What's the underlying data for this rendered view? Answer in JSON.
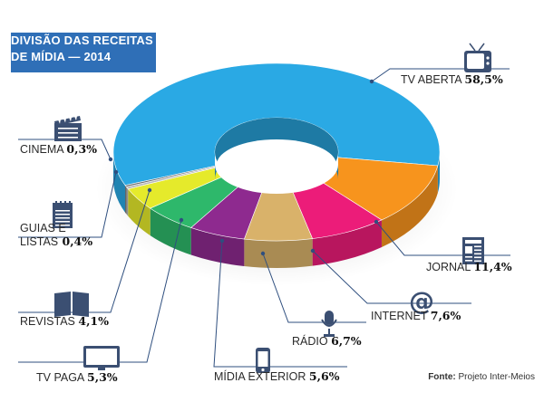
{
  "title_lines": [
    "DIVISÃO DAS RECEITAS",
    "DE MÍDIA — 2014"
  ],
  "source": {
    "prefix": "Fonte:",
    "text": " Projeto Inter-Meios"
  },
  "colors": {
    "title_bg": "#2f6fb7",
    "leader": "#2f4f7f",
    "icon": "#3b4f72"
  },
  "chart_data": {
    "type": "pie",
    "style": "3d-donut",
    "title": "DIVISÃO DAS RECEITAS DE MÍDIA — 2014",
    "unit": "%",
    "slices": [
      {
        "label": "TV ABERTA",
        "value_label": "58,5%",
        "value": 58.5,
        "color": "#2aa9e4",
        "icon": "tv-icon"
      },
      {
        "label": "JORNAL",
        "value_label": "11,4%",
        "value": 11.4,
        "color": "#f7941d",
        "icon": "newspaper-icon"
      },
      {
        "label": "INTERNET",
        "value_label": "7,6%",
        "value": 7.6,
        "color": "#ec1c79",
        "icon": "at-sign-icon"
      },
      {
        "label": "RÁDIO",
        "value_label": "6,7%",
        "value": 6.7,
        "color": "#d9b26a",
        "icon": "microphone-icon"
      },
      {
        "label": "MÍDIA EXTERIOR",
        "value_label": "5,6%",
        "value": 5.6,
        "color": "#8e2a8f",
        "icon": "phone-icon"
      },
      {
        "label": "TV PAGA",
        "value_label": "5,3%",
        "value": 5.3,
        "color": "#2eb86b",
        "icon": "flat-tv-icon"
      },
      {
        "label": "REVISTAS",
        "value_label": "4,1%",
        "value": 4.1,
        "color": "#e5ea2b",
        "icon": "magazine-icon"
      },
      {
        "label_lines": [
          "GUIAS E",
          "LISTAS"
        ],
        "value_label": "0,4%",
        "value": 0.4,
        "color": "#b8b8b8",
        "icon": "notepad-icon"
      },
      {
        "label": "CINEMA",
        "value_label": "0,3%",
        "value": 0.3,
        "color": "#707070",
        "icon": "clapperboard-icon"
      }
    ]
  }
}
